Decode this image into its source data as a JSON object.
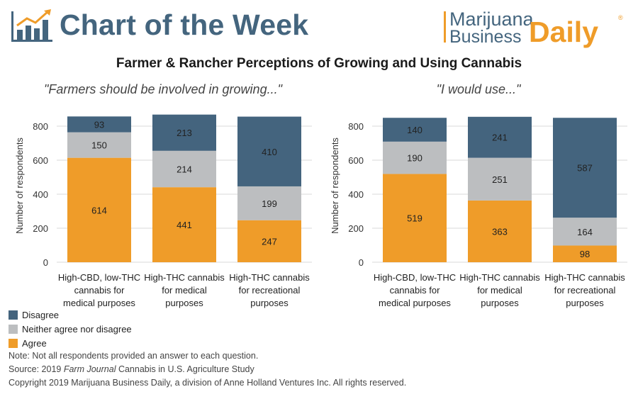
{
  "header": {
    "title": "Chart of the Week",
    "brand_line1": "Marijuana",
    "brand_line2": "Business",
    "brand_daily": "Daily",
    "brand_reg": "®"
  },
  "main_title": "Farmer & Rancher Perceptions of Growing and Using Cannabis",
  "colors": {
    "disagree": "#44647e",
    "neither": "#bcbec0",
    "agree": "#ef9c29",
    "grid": "#d9d9d9",
    "title_blue": "#44657e"
  },
  "legend": {
    "disagree": "Disagree",
    "neither": "Neither agree nor disagree",
    "agree": "Agree"
  },
  "footer": {
    "note": "Note: Not all respondents provided an answer to each question.",
    "source_prefix": "Source: 2019 ",
    "source_italic": "Farm Journal",
    "source_suffix": " Cannabis in U.S. Agriculture Study",
    "copyright": "Copyright 2019 Marijuana Business Daily, a division of Anne Holland Ventures Inc. All rights reserved."
  },
  "chart_data": [
    {
      "type": "bar",
      "stacked": true,
      "title": "\"Farmers should be involved in growing...\"",
      "ylabel": "Number of respondents",
      "ylim": [
        0,
        900
      ],
      "yticks": [
        0,
        200,
        400,
        600,
        800
      ],
      "grid": true,
      "categories": [
        [
          "High-CBD, low-THC",
          "cannabis for",
          "medical purposes"
        ],
        [
          "High-THC cannabis",
          "for medical",
          "purposes"
        ],
        [
          "High-THC cannabis",
          "for recreational",
          "purposes"
        ]
      ],
      "series": [
        {
          "key": "agree",
          "values": [
            614,
            441,
            247
          ]
        },
        {
          "key": "neither",
          "values": [
            150,
            214,
            199
          ]
        },
        {
          "key": "disagree",
          "values": [
            93,
            213,
            410
          ]
        }
      ]
    },
    {
      "type": "bar",
      "stacked": true,
      "title": "\"I would use...\"",
      "ylabel": "Number of respondents",
      "ylim": [
        0,
        900
      ],
      "yticks": [
        0,
        200,
        400,
        600,
        800
      ],
      "grid": true,
      "categories": [
        [
          "High-CBD, low-THC",
          "cannabis for",
          "medical purposes"
        ],
        [
          "High-THC cannabis",
          "for medical",
          "purposes"
        ],
        [
          "High-THC cannabis",
          "for recreational",
          "purposes"
        ]
      ],
      "series": [
        {
          "key": "agree",
          "values": [
            519,
            363,
            98
          ]
        },
        {
          "key": "neither",
          "values": [
            190,
            251,
            164
          ]
        },
        {
          "key": "disagree",
          "values": [
            140,
            241,
            587
          ]
        }
      ]
    }
  ]
}
